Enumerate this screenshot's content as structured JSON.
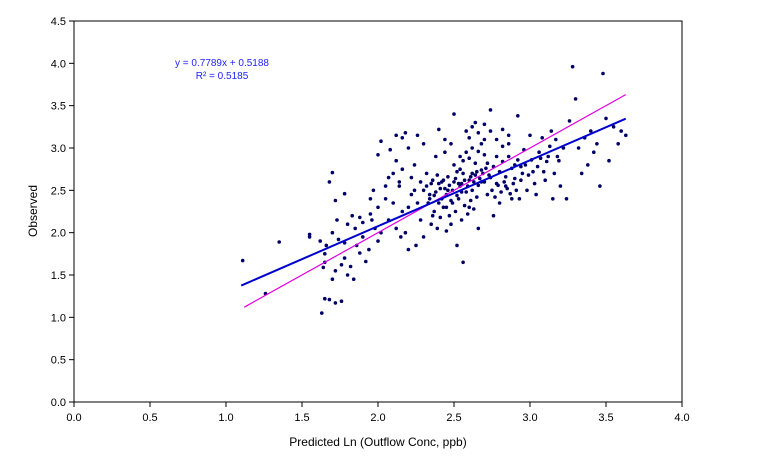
{
  "chart_data": {
    "type": "scatter",
    "title": "",
    "xlabel": "Predicted Ln (Outflow Conc, ppb)",
    "ylabel": "Observed",
    "xlim": [
      0.0,
      4.0
    ],
    "ylim": [
      0.0,
      4.5
    ],
    "x_ticks": [
      "0.0",
      "0.5",
      "1.0",
      "1.5",
      "2.0",
      "2.5",
      "3.0",
      "3.5",
      "4.0"
    ],
    "y_ticks": [
      "0.0",
      "0.5",
      "1.0",
      "1.5",
      "2.0",
      "2.5",
      "3.0",
      "3.5",
      "4.0",
      "4.5"
    ],
    "grid": false,
    "legend": "none",
    "annotation": {
      "equation": "y = 0.7789x + 0.5188",
      "r_squared": "R² = 0.5185",
      "color": "#1f1fff"
    },
    "point_color": "#000066",
    "regression_line": {
      "slope": 0.7789,
      "intercept": 0.5188,
      "x_range": [
        1.1,
        3.63
      ],
      "color": "#0000cc"
    },
    "reference_line": {
      "slope": 1.0,
      "intercept": 0.0,
      "x_range": [
        1.12,
        3.63
      ],
      "color": "#e000e0"
    },
    "points": [
      [
        1.11,
        1.67
      ],
      [
        1.26,
        1.28
      ],
      [
        1.35,
        1.89
      ],
      [
        1.55,
        1.98
      ],
      [
        1.55,
        1.95
      ],
      [
        1.63,
        1.05
      ],
      [
        1.64,
        1.59
      ],
      [
        1.65,
        1.22
      ],
      [
        1.68,
        1.21
      ],
      [
        1.72,
        1.17
      ],
      [
        1.76,
        1.19
      ],
      [
        1.65,
        1.75
      ],
      [
        1.68,
        2.6
      ],
      [
        1.7,
        2.71
      ],
      [
        1.72,
        2.38
      ],
      [
        1.73,
        2.15
      ],
      [
        1.78,
        2.46
      ],
      [
        1.65,
        1.65
      ],
      [
        1.7,
        1.45
      ],
      [
        1.72,
        1.55
      ],
      [
        1.76,
        1.62
      ],
      [
        1.78,
        1.7
      ],
      [
        1.8,
        1.5
      ],
      [
        1.82,
        1.6
      ],
      [
        1.84,
        1.45
      ],
      [
        1.86,
        1.85
      ],
      [
        1.88,
        1.76
      ],
      [
        1.9,
        1.95
      ],
      [
        1.92,
        1.66
      ],
      [
        1.94,
        1.8
      ],
      [
        1.96,
        2.15
      ],
      [
        1.98,
        2.05
      ],
      [
        2.0,
        1.9
      ],
      [
        1.62,
        1.9
      ],
      [
        1.66,
        1.85
      ],
      [
        1.7,
        2.0
      ],
      [
        1.74,
        1.92
      ],
      [
        1.78,
        1.88
      ],
      [
        1.8,
        2.1
      ],
      [
        1.83,
        2.2
      ],
      [
        1.85,
        2.05
      ],
      [
        1.88,
        2.18
      ],
      [
        1.9,
        2.12
      ],
      [
        1.95,
        2.22
      ],
      [
        2.0,
        2.3
      ],
      [
        2.02,
        2.0
      ],
      [
        2.05,
        2.4
      ],
      [
        2.07,
        2.15
      ],
      [
        2.1,
        2.35
      ],
      [
        2.12,
        2.05
      ],
      [
        2.14,
        2.55
      ],
      [
        2.16,
        2.25
      ],
      [
        2.18,
        2.0
      ],
      [
        2.2,
        1.8
      ],
      [
        2.22,
        2.45
      ],
      [
        2.0,
        2.92
      ],
      [
        2.02,
        3.08
      ],
      [
        2.08,
        2.98
      ],
      [
        2.12,
        3.15
      ],
      [
        2.16,
        3.12
      ],
      [
        2.18,
        3.18
      ],
      [
        2.2,
        3.0
      ],
      [
        2.24,
        2.8
      ],
      [
        2.26,
        3.15
      ],
      [
        2.28,
        2.6
      ],
      [
        2.3,
        3.05
      ],
      [
        2.32,
        2.7
      ],
      [
        2.34,
        2.4
      ],
      [
        2.36,
        2.2
      ],
      [
        2.38,
        2.9
      ],
      [
        2.4,
        2.35
      ],
      [
        2.42,
        2.6
      ],
      [
        2.44,
        3.1
      ],
      [
        2.46,
        2.5
      ],
      [
        2.48,
        2.1
      ],
      [
        2.5,
        3.4
      ],
      [
        2.52,
        1.85
      ],
      [
        2.54,
        2.75
      ],
      [
        2.56,
        1.65
      ],
      [
        2.58,
        3.2
      ],
      [
        2.6,
        2.3
      ],
      [
        2.62,
        2.7
      ],
      [
        2.64,
        3.3
      ],
      [
        2.66,
        2.05
      ],
      [
        2.68,
        2.6
      ],
      [
        2.7,
        3.1
      ],
      [
        2.72,
        2.45
      ],
      [
        2.74,
        3.45
      ],
      [
        2.76,
        2.2
      ],
      [
        2.78,
        2.9
      ],
      [
        2.8,
        2.35
      ],
      [
        2.82,
        3.22
      ],
      [
        2.84,
        2.55
      ],
      [
        2.86,
        3.05
      ],
      [
        2.88,
        2.4
      ],
      [
        2.9,
        2.8
      ],
      [
        2.92,
        3.38
      ],
      [
        2.94,
        2.62
      ],
      [
        2.96,
        2.98
      ],
      [
        2.98,
        2.5
      ],
      [
        3.0,
        3.15
      ],
      [
        3.02,
        2.72
      ],
      [
        3.04,
        2.45
      ],
      [
        3.06,
        2.95
      ],
      [
        3.08,
        3.12
      ],
      [
        3.1,
        2.62
      ],
      [
        3.12,
        2.9
      ],
      [
        3.14,
        3.2
      ],
      [
        3.16,
        2.7
      ],
      [
        3.18,
        2.9
      ],
      [
        3.2,
        2.55
      ],
      [
        3.22,
        3.0
      ],
      [
        3.24,
        2.4
      ],
      [
        3.26,
        3.32
      ],
      [
        3.28,
        3.96
      ],
      [
        3.3,
        3.58
      ],
      [
        3.32,
        3.0
      ],
      [
        3.34,
        2.7
      ],
      [
        3.36,
        3.12
      ],
      [
        3.38,
        2.8
      ],
      [
        3.4,
        3.2
      ],
      [
        3.42,
        2.95
      ],
      [
        3.44,
        3.05
      ],
      [
        3.46,
        2.55
      ],
      [
        3.48,
        3.88
      ],
      [
        3.5,
        3.35
      ],
      [
        3.52,
        2.85
      ],
      [
        3.55,
        3.25
      ],
      [
        3.58,
        3.05
      ],
      [
        3.6,
        3.2
      ],
      [
        3.63,
        3.15
      ],
      [
        3.15,
        2.4
      ],
      [
        2.3,
        2.5
      ],
      [
        2.32,
        2.55
      ],
      [
        2.34,
        2.45
      ],
      [
        2.36,
        2.62
      ],
      [
        2.38,
        2.48
      ],
      [
        2.4,
        2.58
      ],
      [
        2.42,
        2.4
      ],
      [
        2.44,
        2.52
      ],
      [
        2.46,
        2.66
      ],
      [
        2.48,
        2.38
      ],
      [
        2.5,
        2.6
      ],
      [
        2.52,
        2.44
      ],
      [
        2.54,
        2.55
      ],
      [
        2.56,
        2.7
      ],
      [
        2.58,
        2.48
      ],
      [
        2.6,
        2.62
      ],
      [
        2.62,
        2.5
      ],
      [
        2.64,
        2.68
      ],
      [
        2.66,
        2.56
      ],
      [
        2.68,
        2.74
      ],
      [
        2.7,
        2.6
      ],
      [
        2.72,
        2.82
      ],
      [
        2.74,
        2.65
      ],
      [
        2.76,
        2.78
      ],
      [
        2.78,
        2.58
      ],
      [
        2.8,
        2.72
      ],
      [
        2.82,
        2.84
      ],
      [
        2.84,
        2.66
      ],
      [
        2.86,
        2.9
      ],
      [
        2.88,
        2.76
      ],
      [
        2.9,
        2.64
      ],
      [
        2.92,
        2.86
      ],
      [
        2.94,
        2.78
      ],
      [
        2.5,
        2.8
      ],
      [
        2.52,
        2.72
      ],
      [
        2.54,
        2.9
      ],
      [
        2.56,
        2.85
      ],
      [
        2.58,
        2.95
      ],
      [
        2.6,
        2.88
      ],
      [
        2.62,
        3.0
      ],
      [
        2.64,
        2.82
      ],
      [
        2.66,
        2.96
      ],
      [
        2.68,
        3.05
      ],
      [
        2.7,
        2.92
      ],
      [
        2.45,
        2.3
      ],
      [
        2.47,
        2.2
      ],
      [
        2.49,
        2.35
      ],
      [
        2.51,
        2.25
      ],
      [
        2.53,
        2.4
      ],
      [
        2.55,
        2.15
      ],
      [
        2.57,
        2.32
      ],
      [
        2.59,
        2.22
      ],
      [
        2.61,
        2.38
      ],
      [
        2.63,
        2.28
      ],
      [
        2.65,
        2.42
      ],
      [
        2.35,
        2.1
      ],
      [
        2.37,
        2.25
      ],
      [
        2.39,
        2.05
      ],
      [
        2.41,
        2.18
      ],
      [
        2.43,
        2.3
      ],
      [
        2.45,
        2.02
      ],
      [
        2.28,
        2.15
      ],
      [
        2.26,
        2.35
      ],
      [
        2.24,
        2.5
      ],
      [
        2.22,
        2.65
      ],
      [
        2.2,
        2.3
      ],
      [
        2.1,
        2.7
      ],
      [
        2.12,
        2.85
      ],
      [
        2.14,
        2.6
      ],
      [
        2.16,
        2.75
      ],
      [
        2.05,
        2.55
      ],
      [
        2.07,
        2.65
      ],
      [
        1.95,
        2.4
      ],
      [
        1.97,
        2.5
      ],
      [
        2.15,
        1.95
      ],
      [
        2.25,
        1.85
      ],
      [
        2.3,
        1.95
      ],
      [
        2.75,
        2.5
      ],
      [
        2.77,
        2.42
      ],
      [
        2.79,
        2.56
      ],
      [
        2.81,
        2.48
      ],
      [
        2.83,
        2.6
      ],
      [
        2.85,
        2.52
      ],
      [
        2.87,
        2.46
      ],
      [
        2.89,
        2.58
      ],
      [
        2.91,
        2.5
      ],
      [
        2.93,
        2.4
      ],
      [
        2.95,
        2.7
      ],
      [
        2.97,
        2.8
      ],
      [
        2.99,
        2.68
      ],
      [
        3.01,
        2.86
      ],
      [
        3.03,
        2.58
      ],
      [
        3.05,
        2.78
      ],
      [
        3.07,
        2.88
      ],
      [
        3.09,
        2.72
      ],
      [
        3.11,
        2.84
      ],
      [
        3.13,
        3.02
      ],
      [
        3.17,
        3.1
      ],
      [
        3.19,
        2.85
      ],
      [
        2.55,
        2.58
      ],
      [
        2.57,
        2.62
      ],
      [
        2.59,
        2.55
      ],
      [
        2.61,
        2.66
      ],
      [
        2.63,
        2.6
      ],
      [
        2.65,
        2.72
      ],
      [
        2.67,
        2.64
      ],
      [
        2.69,
        2.7
      ],
      [
        2.71,
        2.76
      ],
      [
        2.73,
        2.68
      ],
      [
        2.55,
        2.48
      ],
      [
        2.45,
        2.45
      ],
      [
        2.47,
        2.56
      ],
      [
        2.49,
        2.5
      ],
      [
        2.51,
        2.64
      ],
      [
        2.53,
        2.58
      ],
      [
        2.43,
        2.62
      ],
      [
        2.41,
        2.52
      ],
      [
        2.39,
        2.68
      ],
      [
        2.37,
        2.44
      ],
      [
        2.35,
        2.58
      ],
      [
        2.33,
        2.35
      ],
      [
        2.6,
        3.12
      ],
      [
        2.62,
        3.25
      ],
      [
        2.66,
        3.18
      ],
      [
        2.7,
        3.28
      ],
      [
        2.74,
        3.2
      ],
      [
        2.78,
        3.1
      ],
      [
        2.82,
        3.02
      ],
      [
        2.86,
        3.15
      ],
      [
        2.4,
        3.22
      ],
      [
        2.44,
        2.95
      ],
      [
        2.48,
        3.05
      ]
    ]
  }
}
